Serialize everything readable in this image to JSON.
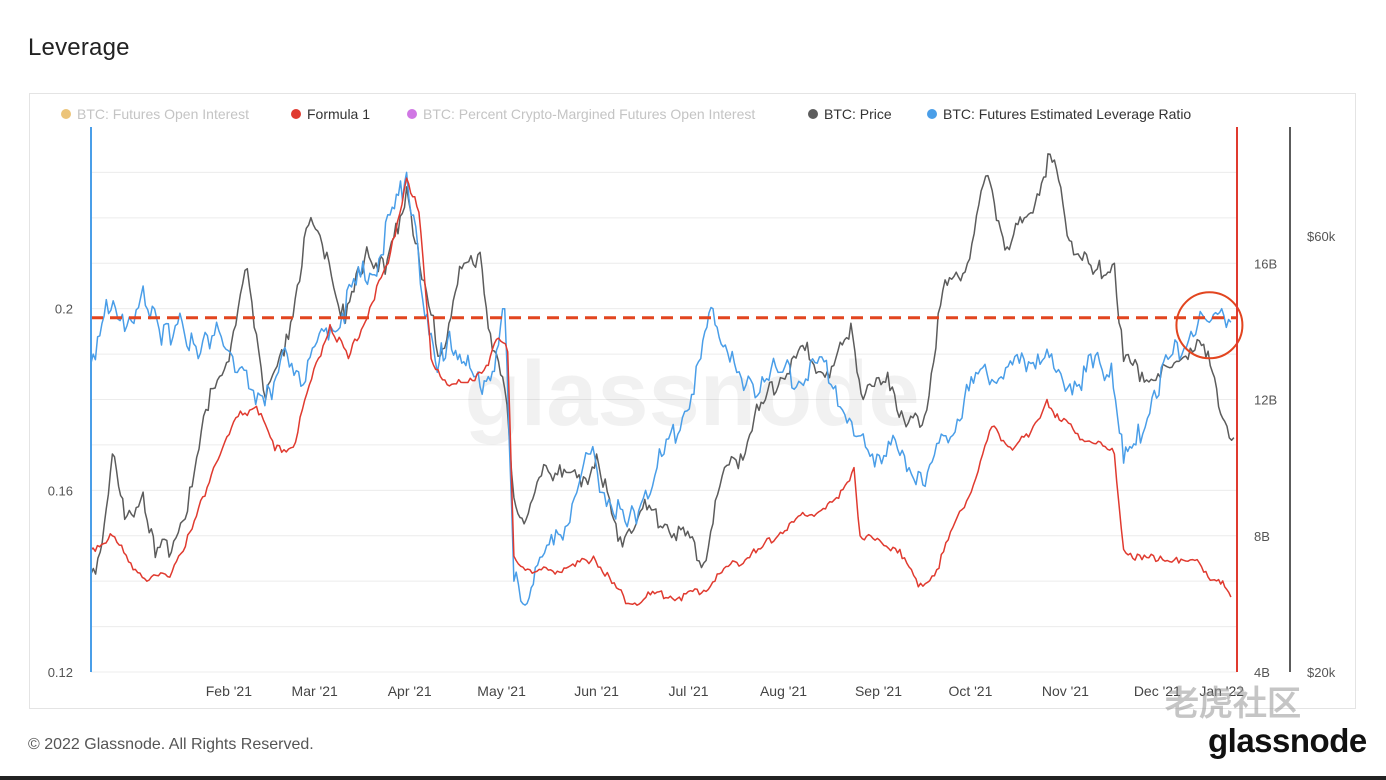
{
  "page": {
    "title": "Leverage",
    "copyright": "© 2022 Glassnode. All Rights Reserved.",
    "brand": "glassnode",
    "watermark": "glassnode",
    "forum_watermark": "老虎社区"
  },
  "colors": {
    "open_interest": "#e6b04c",
    "formula1": "#e03a2f",
    "crypto_margined": "#c04adb",
    "price": "#5c5c5c",
    "leverage": "#4a9ee8",
    "annotation": "#e2451f",
    "grid": "#ececec"
  },
  "chart_data": {
    "type": "line",
    "title": "Leverage",
    "legend": [
      {
        "label": "BTC: Futures Open Interest",
        "color": "#e6b04c",
        "active": false
      },
      {
        "label": "Formula 1",
        "color": "#e03a2f",
        "active": true
      },
      {
        "label": "BTC: Percent Crypto-Margined Futures Open Interest",
        "color": "#c04adb",
        "active": false
      },
      {
        "label": "BTC: Price",
        "color": "#5c5c5c",
        "active": true
      },
      {
        "label": "BTC: Futures Estimated Leverage Ratio",
        "color": "#4a9ee8",
        "active": true
      }
    ],
    "legend_position": "top",
    "x_axis": {
      "ticks": [
        "Feb '21",
        "Mar '21",
        "Apr '21",
        "May '21",
        "Jun '21",
        "Jul '21",
        "Aug '21",
        "Sep '21",
        "Oct '21",
        "Nov '21",
        "Dec '21",
        "Jan '22"
      ],
      "range": [
        "2021-01-01",
        "2022-01-10"
      ]
    },
    "y_left": {
      "ticks": [
        "0.12",
        "0.16",
        "0.2"
      ],
      "range": [
        0.12,
        0.24
      ]
    },
    "y_right_oi": {
      "ticks": [
        "4B",
        "8B",
        "12B",
        "16B"
      ],
      "range": [
        4,
        20
      ]
    },
    "y_right_price": {
      "ticks": [
        "$20k",
        "$60k"
      ],
      "range": [
        20000,
        70000
      ]
    },
    "grid": true,
    "reference_line": {
      "label": "",
      "y": 0.198,
      "style": "dashed"
    },
    "series": [
      {
        "name": "BTC: Futures Estimated Leverage Ratio",
        "axis": "left",
        "points": [
          [
            "2021-01-01",
            0.188
          ],
          [
            "2021-01-06",
            0.202
          ],
          [
            "2021-01-12",
            0.195
          ],
          [
            "2021-01-18",
            0.205
          ],
          [
            "2021-01-24",
            0.192
          ],
          [
            "2021-01-30",
            0.199
          ],
          [
            "2021-02-05",
            0.189
          ],
          [
            "2021-02-11",
            0.197
          ],
          [
            "2021-02-17",
            0.186
          ],
          [
            "2021-02-23",
            0.182
          ],
          [
            "2021-03-01",
            0.18
          ],
          [
            "2021-03-06",
            0.19
          ],
          [
            "2021-03-12",
            0.184
          ],
          [
            "2021-03-18",
            0.195
          ],
          [
            "2021-03-24",
            0.199
          ],
          [
            "2021-03-30",
            0.207
          ],
          [
            "2021-04-05",
            0.211
          ],
          [
            "2021-04-10",
            0.222
          ],
          [
            "2021-04-14",
            0.23
          ],
          [
            "2021-04-17",
            0.218
          ],
          [
            "2021-04-20",
            0.198
          ],
          [
            "2021-04-24",
            0.186
          ],
          [
            "2021-04-28",
            0.195
          ],
          [
            "2021-05-02",
            0.188
          ],
          [
            "2021-05-06",
            0.185
          ],
          [
            "2021-05-10",
            0.184
          ],
          [
            "2021-05-14",
            0.192
          ],
          [
            "2021-05-16",
            0.2
          ],
          [
            "2021-05-19",
            0.14
          ],
          [
            "2021-05-22",
            0.135
          ],
          [
            "2021-05-26",
            0.143
          ],
          [
            "2021-06-01",
            0.148
          ],
          [
            "2021-06-07",
            0.157
          ],
          [
            "2021-06-13",
            0.168
          ],
          [
            "2021-06-19",
            0.158
          ],
          [
            "2021-06-25",
            0.152
          ],
          [
            "2021-07-01",
            0.16
          ],
          [
            "2021-07-07",
            0.168
          ],
          [
            "2021-07-13",
            0.176
          ],
          [
            "2021-07-19",
            0.189
          ],
          [
            "2021-07-23",
            0.2
          ],
          [
            "2021-07-27",
            0.192
          ],
          [
            "2021-08-02",
            0.182
          ],
          [
            "2021-08-08",
            0.185
          ],
          [
            "2021-08-14",
            0.186
          ],
          [
            "2021-08-20",
            0.184
          ],
          [
            "2021-08-26",
            0.188
          ],
          [
            "2021-09-01",
            0.183
          ],
          [
            "2021-09-07",
            0.172
          ],
          [
            "2021-09-13",
            0.168
          ],
          [
            "2021-09-19",
            0.17
          ],
          [
            "2021-09-25",
            0.165
          ],
          [
            "2021-10-01",
            0.164
          ],
          [
            "2021-10-07",
            0.172
          ],
          [
            "2021-10-13",
            0.18
          ],
          [
            "2021-10-19",
            0.187
          ],
          [
            "2021-10-25",
            0.185
          ],
          [
            "2021-10-31",
            0.188
          ],
          [
            "2021-11-06",
            0.19
          ],
          [
            "2021-11-12",
            0.186
          ],
          [
            "2021-11-18",
            0.184
          ],
          [
            "2021-11-24",
            0.187
          ],
          [
            "2021-11-30",
            0.188
          ],
          [
            "2021-12-04",
            0.166
          ],
          [
            "2021-12-08",
            0.17
          ],
          [
            "2021-12-14",
            0.182
          ],
          [
            "2021-12-20",
            0.19
          ],
          [
            "2021-12-26",
            0.195
          ],
          [
            "2022-01-01",
            0.197
          ],
          [
            "2022-01-05",
            0.2
          ],
          [
            "2022-01-08",
            0.197
          ]
        ]
      },
      {
        "name": "BTC: Price",
        "axis": "price",
        "points": [
          [
            "2021-01-01",
            29000
          ],
          [
            "2021-01-04",
            31000
          ],
          [
            "2021-01-08",
            40000
          ],
          [
            "2021-01-12",
            34000
          ],
          [
            "2021-01-18",
            36500
          ],
          [
            "2021-01-22",
            30500
          ],
          [
            "2021-01-28",
            32000
          ],
          [
            "2021-02-03",
            37000
          ],
          [
            "2021-02-09",
            46000
          ],
          [
            "2021-02-15",
            48500
          ],
          [
            "2021-02-21",
            57000
          ],
          [
            "2021-02-27",
            45000
          ],
          [
            "2021-03-05",
            49000
          ],
          [
            "2021-03-13",
            61000
          ],
          [
            "2021-03-19",
            58500
          ],
          [
            "2021-03-25",
            52000
          ],
          [
            "2021-04-01",
            59000
          ],
          [
            "2021-04-07",
            56500
          ],
          [
            "2021-04-14",
            64500
          ],
          [
            "2021-04-19",
            56000
          ],
          [
            "2021-04-25",
            49000
          ],
          [
            "2021-05-02",
            57000
          ],
          [
            "2021-05-08",
            58500
          ],
          [
            "2021-05-12",
            49500
          ],
          [
            "2021-05-16",
            46000
          ],
          [
            "2021-05-19",
            36000
          ],
          [
            "2021-05-23",
            34000
          ],
          [
            "2021-05-28",
            38000
          ],
          [
            "2021-06-03",
            39000
          ],
          [
            "2021-06-10",
            37000
          ],
          [
            "2021-06-15",
            40000
          ],
          [
            "2021-06-22",
            32000
          ],
          [
            "2021-06-30",
            35000
          ],
          [
            "2021-07-08",
            33500
          ],
          [
            "2021-07-14",
            32500
          ],
          [
            "2021-07-20",
            30000
          ],
          [
            "2021-07-26",
            38000
          ],
          [
            "2021-08-01",
            40000
          ],
          [
            "2021-08-07",
            44000
          ],
          [
            "2021-08-14",
            47000
          ],
          [
            "2021-08-22",
            49500
          ],
          [
            "2021-08-30",
            47000
          ],
          [
            "2021-09-06",
            52000
          ],
          [
            "2021-09-10",
            45000
          ],
          [
            "2021-09-18",
            47500
          ],
          [
            "2021-09-24",
            42500
          ],
          [
            "2021-09-30",
            43500
          ],
          [
            "2021-10-06",
            55000
          ],
          [
            "2021-10-14",
            57500
          ],
          [
            "2021-10-20",
            65500
          ],
          [
            "2021-10-27",
            59000
          ],
          [
            "2021-11-03",
            62000
          ],
          [
            "2021-11-10",
            67500
          ],
          [
            "2021-11-17",
            59500
          ],
          [
            "2021-11-24",
            56500
          ],
          [
            "2021-12-01",
            57500
          ],
          [
            "2021-12-04",
            48500
          ],
          [
            "2021-12-10",
            47500
          ],
          [
            "2021-12-16",
            47000
          ],
          [
            "2021-12-22",
            48500
          ],
          [
            "2021-12-28",
            50500
          ],
          [
            "2022-01-02",
            47500
          ],
          [
            "2022-01-06",
            43000
          ],
          [
            "2022-01-09",
            41500
          ]
        ]
      },
      {
        "name": "Formula 1",
        "axis": "oi",
        "points": [
          [
            "2021-01-01",
            7.6
          ],
          [
            "2021-01-08",
            8.0
          ],
          [
            "2021-01-14",
            7.2
          ],
          [
            "2021-01-20",
            6.7
          ],
          [
            "2021-01-26",
            6.8
          ],
          [
            "2021-02-03",
            8.2
          ],
          [
            "2021-02-10",
            10.0
          ],
          [
            "2021-02-18",
            11.5
          ],
          [
            "2021-02-24",
            11.8
          ],
          [
            "2021-03-02",
            10.5
          ],
          [
            "2021-03-08",
            10.6
          ],
          [
            "2021-03-14",
            12.6
          ],
          [
            "2021-03-20",
            14.2
          ],
          [
            "2021-03-26",
            13.2
          ],
          [
            "2021-04-02",
            14.7
          ],
          [
            "2021-04-08",
            16.0
          ],
          [
            "2021-04-14",
            18.5
          ],
          [
            "2021-04-18",
            17.5
          ],
          [
            "2021-04-22",
            13.2
          ],
          [
            "2021-04-28",
            12.4
          ],
          [
            "2021-05-04",
            12.5
          ],
          [
            "2021-05-10",
            13.0
          ],
          [
            "2021-05-14",
            13.8
          ],
          [
            "2021-05-17",
            13.4
          ],
          [
            "2021-05-19",
            7.4
          ],
          [
            "2021-05-25",
            6.9
          ],
          [
            "2021-05-31",
            7.0
          ],
          [
            "2021-06-08",
            7.1
          ],
          [
            "2021-06-14",
            7.4
          ],
          [
            "2021-06-20",
            6.6
          ],
          [
            "2021-06-26",
            6.0
          ],
          [
            "2021-07-04",
            6.3
          ],
          [
            "2021-07-12",
            6.2
          ],
          [
            "2021-07-20",
            6.4
          ],
          [
            "2021-07-28",
            7.1
          ],
          [
            "2021-08-06",
            7.5
          ],
          [
            "2021-08-14",
            8.1
          ],
          [
            "2021-08-22",
            8.6
          ],
          [
            "2021-08-28",
            8.8
          ],
          [
            "2021-09-02",
            9.1
          ],
          [
            "2021-09-07",
            10.0
          ],
          [
            "2021-09-09",
            8.0
          ],
          [
            "2021-09-16",
            7.8
          ],
          [
            "2021-09-22",
            7.6
          ],
          [
            "2021-09-28",
            6.5
          ],
          [
            "2021-10-04",
            7.0
          ],
          [
            "2021-10-10",
            8.4
          ],
          [
            "2021-10-16",
            9.5
          ],
          [
            "2021-10-22",
            11.2
          ],
          [
            "2021-10-28",
            10.6
          ],
          [
            "2021-11-03",
            10.9
          ],
          [
            "2021-11-09",
            12.0
          ],
          [
            "2021-11-13",
            11.4
          ],
          [
            "2021-11-19",
            11.0
          ],
          [
            "2021-11-25",
            10.7
          ],
          [
            "2021-12-01",
            10.4
          ],
          [
            "2021-12-04",
            7.6
          ],
          [
            "2021-12-10",
            7.3
          ],
          [
            "2021-12-16",
            7.4
          ],
          [
            "2021-12-22",
            7.2
          ],
          [
            "2021-12-28",
            7.3
          ],
          [
            "2022-01-02",
            6.7
          ],
          [
            "2022-01-06",
            6.5
          ],
          [
            "2022-01-08",
            6.2
          ]
        ]
      }
    ]
  }
}
